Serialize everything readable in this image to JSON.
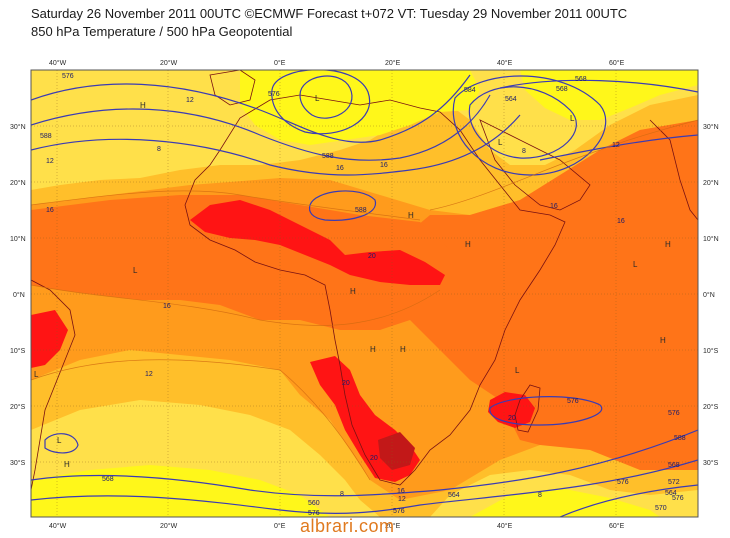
{
  "header": {
    "line1": "Saturday 26 November 2011 00UTC ©ECMWF Forecast t+072 VT: Tuesday 29 November 2011 00UTC",
    "line2": "850 hPa Temperature / 500 hPa Geopotential"
  },
  "watermark": "albrari.com",
  "axes": {
    "lon_labels": [
      "40°W",
      "20°W",
      "0°E",
      "20°E",
      "40°E",
      "60°E"
    ],
    "lat_labels": [
      "30°N",
      "20°N",
      "10°N",
      "0°N",
      "10°S",
      "20°S",
      "30°S"
    ]
  },
  "colors": {
    "bright_yellow": "#fff71a",
    "yellow": "#ffe04a",
    "light_orange": "#ffbf2a",
    "orange": "#ff9b1c",
    "dark_orange": "#ff7418",
    "red": "#ff1414",
    "dark_red": "#c21818",
    "contour": "#3b3bb4",
    "coast": "#7a1212"
  },
  "contour_labels": [
    "576",
    "576",
    "588",
    "584",
    "588",
    "568",
    "12",
    "8",
    "8",
    "12",
    "16",
    "16",
    "16",
    "16",
    "16",
    "12",
    "20",
    "20",
    "20",
    "20",
    "16",
    "576",
    "588",
    "588",
    "12",
    "568",
    "560",
    "564",
    "568",
    "576",
    "572",
    "576",
    "8",
    "8",
    "12",
    "16",
    "576",
    "570",
    "576",
    "564",
    "568",
    "564",
    "576"
  ],
  "pressure_marks": [
    "H",
    "L"
  ]
}
